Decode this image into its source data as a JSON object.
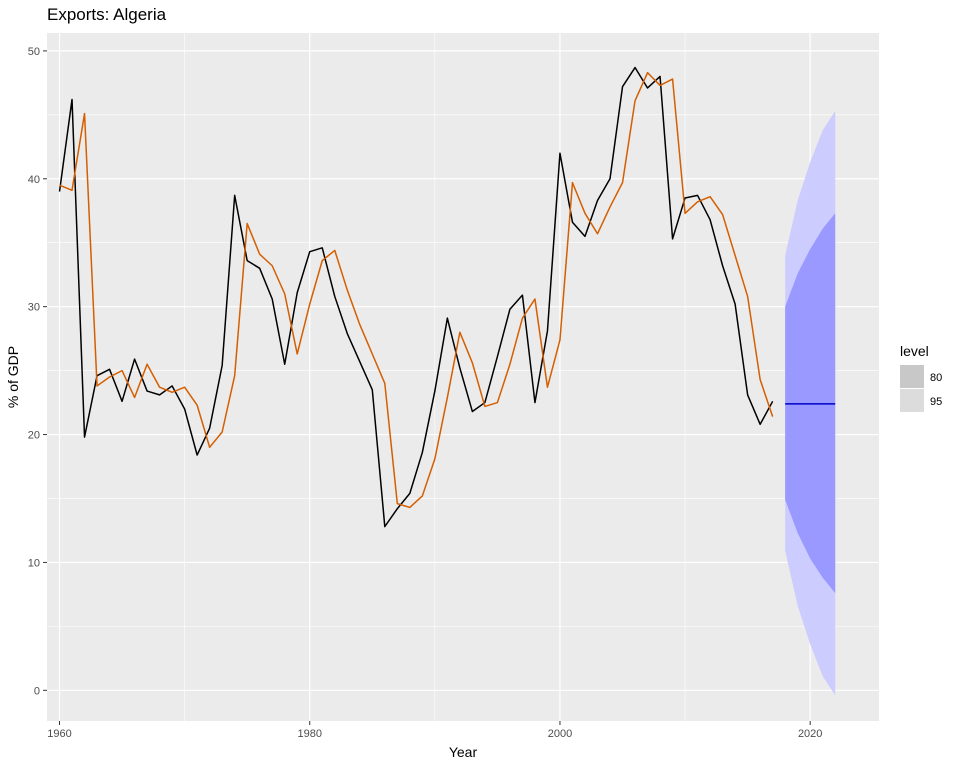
{
  "chart_data": {
    "type": "line",
    "title": "Exports: Algeria",
    "xlabel": "Year",
    "ylabel": "% of GDP",
    "xlim": [
      1959,
      2025.5
    ],
    "ylim": [
      -2.4,
      51.4
    ],
    "xticks": [
      1960,
      1980,
      2000,
      2020
    ],
    "yticks": [
      0,
      10,
      20,
      30,
      40,
      50
    ],
    "x_tick_labels": [
      "1960",
      "1980",
      "2000",
      "2020"
    ],
    "y_tick_labels": [
      "0",
      "10",
      "20",
      "30",
      "40",
      "50"
    ],
    "grid": true,
    "legend": {
      "title": "level",
      "position": "right",
      "entries": [
        {
          "label": "80",
          "color": "#c8c8c8"
        },
        {
          "label": "95",
          "color": "#dcdcdc"
        }
      ]
    },
    "series": [
      {
        "color": "#000000",
        "x": [
          1960,
          1961,
          1962,
          1963,
          1964,
          1965,
          1966,
          1967,
          1968,
          1969,
          1970,
          1971,
          1972,
          1973,
          1974,
          1975,
          1976,
          1977,
          1978,
          1979,
          1980,
          1981,
          1982,
          1983,
          1984,
          1985,
          1986,
          1987,
          1988,
          1989,
          1990,
          1991,
          1992,
          1993,
          1994,
          1995,
          1996,
          1997,
          1998,
          1999,
          2000,
          2001,
          2002,
          2003,
          2004,
          2005,
          2006,
          2007,
          2008,
          2009,
          2010,
          2011,
          2012,
          2013,
          2014,
          2015,
          2016,
          2017
        ],
        "values": [
          39.0,
          46.2,
          19.8,
          24.6,
          25.1,
          22.6,
          25.9,
          23.4,
          23.1,
          23.8,
          22.0,
          18.4,
          20.5,
          25.4,
          38.7,
          33.6,
          33.0,
          30.6,
          25.5,
          31.1,
          34.3,
          34.6,
          30.8,
          27.9,
          25.7,
          23.5,
          12.8,
          14.2,
          15.4,
          18.6,
          23.4,
          29.1,
          25.2,
          21.8,
          22.5,
          26.1,
          29.8,
          30.9,
          22.5,
          28.1,
          42.0,
          36.6,
          35.5,
          38.3,
          40.0,
          47.2,
          48.7,
          47.1,
          48.0,
          35.3,
          38.5,
          38.7,
          36.8,
          33.2,
          30.2,
          23.1,
          20.8,
          22.6
        ]
      },
      {
        "color": "#d55e00",
        "x": [
          1960,
          1961,
          1962,
          1963,
          1964,
          1965,
          1966,
          1967,
          1968,
          1969,
          1970,
          1971,
          1972,
          1973,
          1974,
          1975,
          1976,
          1977,
          1978,
          1979,
          1980,
          1981,
          1982,
          1983,
          1984,
          1985,
          1986,
          1987,
          1988,
          1989,
          1990,
          1991,
          1992,
          1993,
          1994,
          1995,
          1996,
          1997,
          1998,
          1999,
          2000,
          2001,
          2002,
          2003,
          2004,
          2005,
          2006,
          2007,
          2008,
          2009,
          2010,
          2011,
          2012,
          2013,
          2014,
          2015,
          2016,
          2017
        ],
        "values": [
          39.5,
          39.1,
          45.1,
          23.8,
          24.5,
          25.0,
          22.9,
          25.5,
          23.7,
          23.3,
          23.7,
          22.3,
          19.0,
          20.2,
          24.6,
          36.5,
          34.1,
          33.2,
          31.0,
          26.3,
          30.2,
          33.6,
          34.4,
          31.3,
          28.6,
          26.3,
          24.0,
          14.6,
          14.3,
          15.2,
          18.1,
          22.9,
          28.0,
          25.6,
          22.2,
          22.5,
          25.5,
          29.1,
          30.6,
          23.7,
          27.4,
          39.7,
          37.3,
          35.7,
          37.8,
          39.7,
          46.1,
          48.3,
          47.3,
          47.8,
          37.3,
          38.2,
          38.6,
          37.2,
          34.0,
          30.8,
          24.3,
          21.4
        ]
      },
      {
        "color": "#0000cc",
        "x": [
          2018,
          2022
        ],
        "values": [
          22.4,
          22.4
        ]
      }
    ],
    "intervals": [
      {
        "level": "95",
        "color": "#ccccff",
        "x": [
          2018,
          2019,
          2020,
          2021,
          2022
        ],
        "lower": [
          10.9,
          6.6,
          3.6,
          1.1,
          -0.4
        ],
        "upper": [
          34.0,
          38.3,
          41.3,
          43.8,
          45.3
        ]
      },
      {
        "level": "80",
        "color": "#9999ff",
        "x": [
          2018,
          2019,
          2020,
          2021,
          2022
        ],
        "lower": [
          14.9,
          12.3,
          10.3,
          8.8,
          7.6
        ],
        "upper": [
          30.0,
          32.6,
          34.5,
          36.1,
          37.3
        ]
      }
    ]
  }
}
